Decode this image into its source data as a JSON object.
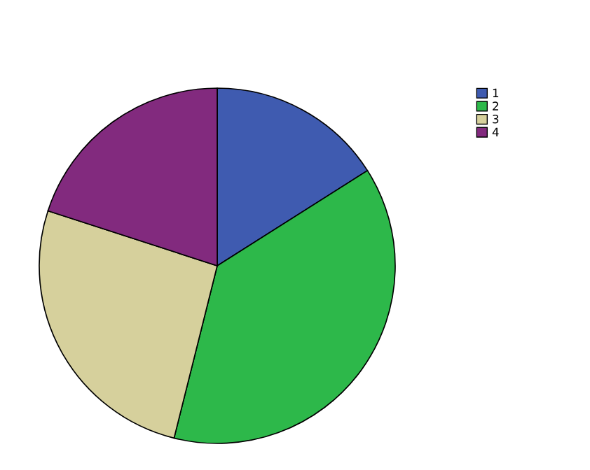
{
  "chart_data": {
    "type": "pie",
    "categories": [
      "1",
      "2",
      "3",
      "4"
    ],
    "values": [
      16,
      37.9,
      26.1,
      20
    ],
    "colors": [
      "#3f5bb0",
      "#2db84a",
      "#d6d09c",
      "#822a7e"
    ],
    "legend": "top right"
  }
}
